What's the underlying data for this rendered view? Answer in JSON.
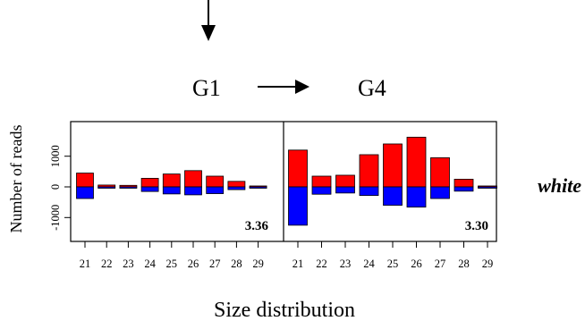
{
  "chart_data": {
    "type": "bar",
    "panels": [
      {
        "name": "G1",
        "categories": [
          "21",
          "22",
          "23",
          "24",
          "25",
          "26",
          "27",
          "28",
          "29"
        ],
        "series": [
          {
            "values": [
              450,
              60,
              50,
              280,
              420,
              530,
              350,
              180,
              30
            ],
            "color": "#ff0000"
          },
          {
            "values": [
              -380,
              -40,
              -40,
              -150,
              -230,
              -260,
              -220,
              -90,
              -20
            ],
            "color": "#0000ff"
          }
        ],
        "value_label": "3.36"
      },
      {
        "name": "G4",
        "categories": [
          "21",
          "22",
          "23",
          "24",
          "25",
          "26",
          "27",
          "28",
          "29"
        ],
        "series": [
          {
            "values": [
              1200,
              350,
              380,
              1050,
              1400,
              1620,
              950,
              250,
              30
            ],
            "color": "#ff0000"
          },
          {
            "values": [
              -1250,
              -240,
              -200,
              -280,
              -600,
              -660,
              -380,
              -140,
              -20
            ],
            "color": "#0000ff"
          }
        ],
        "value_label": "3.30"
      }
    ],
    "y_ticks": [
      "1000",
      "0",
      "-1000"
    ],
    "ylim": [
      -1400,
      1900
    ],
    "xlabel": "Size distribution",
    "ylabel": "Number of reads",
    "row_label": "white",
    "grid": false,
    "legend": "none"
  },
  "header": {
    "from_label": "G1",
    "to_label": "G4"
  }
}
